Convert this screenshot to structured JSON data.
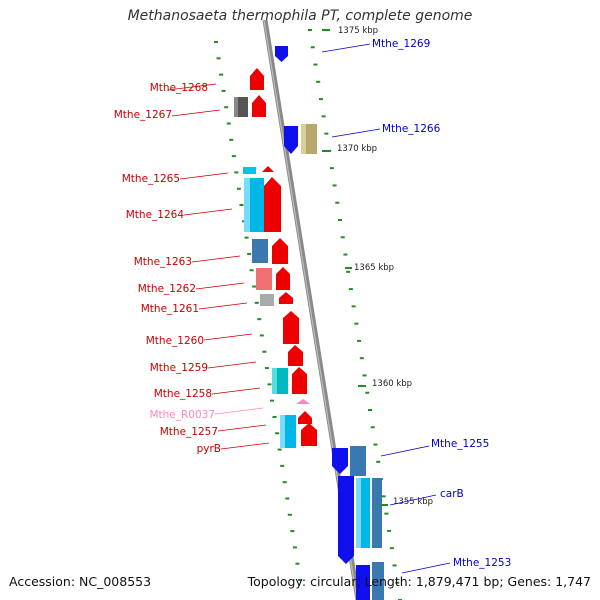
{
  "title": "Methanosaeta thermophila PT, complete genome",
  "accession": "Accession: NC_008553",
  "topology": "Topology: circular; Length: 1,879,471 bp; Genes: 1,747",
  "colors": {
    "backbone": "#888888",
    "forward_label": "#0000cc",
    "reverse_label": "#cc0000",
    "rna_label": "#ff88bb",
    "tick": "#228b22"
  },
  "scale_ticks": [
    {
      "label": "1375 kbp"
    },
    {
      "label": "1370 kbp"
    },
    {
      "label": "1365 kbp"
    },
    {
      "label": "1360 kbp"
    },
    {
      "label": "1355 kbp"
    }
  ],
  "genes": [
    {
      "name": "Mthe_1269",
      "strand": "forward"
    },
    {
      "name": "Mthe_1268",
      "strand": "reverse"
    },
    {
      "name": "Mthe_1267",
      "strand": "reverse"
    },
    {
      "name": "Mthe_1266",
      "strand": "forward"
    },
    {
      "name": "Mthe_1265",
      "strand": "reverse"
    },
    {
      "name": "Mthe_1264",
      "strand": "reverse"
    },
    {
      "name": "Mthe_1263",
      "strand": "reverse"
    },
    {
      "name": "Mthe_1262",
      "strand": "reverse"
    },
    {
      "name": "Mthe_1261",
      "strand": "reverse"
    },
    {
      "name": "Mthe_1260",
      "strand": "reverse"
    },
    {
      "name": "Mthe_1259",
      "strand": "reverse"
    },
    {
      "name": "Mthe_1258",
      "strand": "reverse"
    },
    {
      "name": "Mthe_R0037",
      "strand": "rna"
    },
    {
      "name": "Mthe_1257",
      "strand": "reverse"
    },
    {
      "name": "pyrB",
      "strand": "reverse"
    },
    {
      "name": "Mthe_1255",
      "strand": "forward"
    },
    {
      "name": "carB",
      "strand": "forward"
    },
    {
      "name": "Mthe_1253",
      "strand": "forward"
    }
  ]
}
